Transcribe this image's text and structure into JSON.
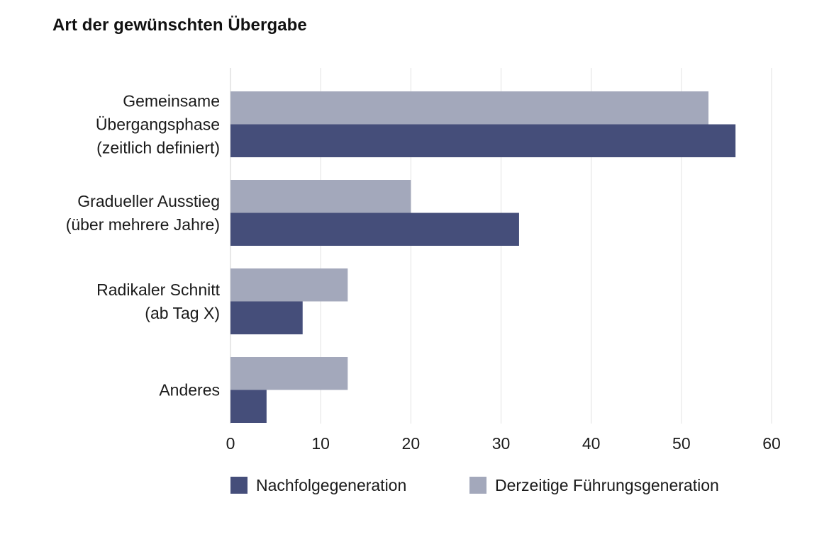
{
  "chart_data": {
    "type": "bar",
    "orientation": "horizontal",
    "title": "Art der gewünschten Übergabe",
    "categories": [
      [
        "Gemeinsame",
        "Übergangsphase",
        "(zeitlich definiert)"
      ],
      [
        "Gradueller Ausstieg",
        "(über mehrere Jahre)"
      ],
      [
        "Radikaler Schnitt",
        "(ab Tag X)"
      ],
      [
        "Anderes"
      ]
    ],
    "series": [
      {
        "name": "Derzeitige Führungsgeneration",
        "color": "#a3a8bb",
        "values": [
          53,
          20,
          13,
          13
        ]
      },
      {
        "name": "Nachfolgegeneration",
        "color": "#454e7a",
        "values": [
          56,
          32,
          8,
          4
        ]
      }
    ],
    "xlim": [
      0,
      60
    ],
    "xticks": [
      0,
      10,
      20,
      30,
      40,
      50,
      60
    ],
    "grid": true,
    "legend": {
      "position": "bottom",
      "order": [
        "Nachfolgegeneration",
        "Derzeitige Führungsgeneration"
      ]
    }
  }
}
